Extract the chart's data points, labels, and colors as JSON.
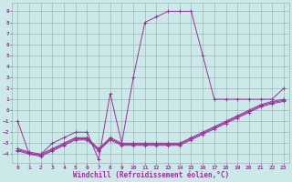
{
  "xlabel": "Windchill (Refroidissement éolien,°C)",
  "bg_color": "#cce8e8",
  "line_color": "#993399",
  "grid_color": "#99bbbb",
  "x_ticks": [
    0,
    1,
    2,
    3,
    4,
    5,
    6,
    7,
    8,
    9,
    10,
    11,
    12,
    13,
    14,
    15,
    16,
    17,
    18,
    19,
    20,
    21,
    22,
    23
  ],
  "y_ticks": [
    -4,
    -3,
    -2,
    -1,
    0,
    1,
    2,
    3,
    4,
    5,
    6,
    7,
    8,
    9
  ],
  "ylim": [
    -4.8,
    9.8
  ],
  "xlim": [
    -0.5,
    23.5
  ],
  "main_y": [
    -1,
    -4,
    -4,
    -3,
    -2.5,
    -2,
    -2,
    -4.5,
    1.5,
    -3,
    3,
    8,
    8.5,
    9,
    9,
    9,
    5,
    1,
    1,
    1,
    1,
    1,
    1,
    2
  ],
  "line1_y": [
    -3.5,
    -3.8,
    -4,
    -3.5,
    -3,
    -2.5,
    -2.5,
    -3.5,
    -2.5,
    -3,
    -3,
    -3,
    -3,
    -3,
    -3,
    -2.5,
    -2,
    -1.5,
    -1,
    -0.5,
    0,
    0.5,
    0.8,
    1.0
  ],
  "line2_y": [
    -3.6,
    -3.9,
    -4.1,
    -3.6,
    -3.1,
    -2.6,
    -2.6,
    -3.6,
    -2.6,
    -3.1,
    -3.1,
    -3.1,
    -3.1,
    -3.1,
    -3.1,
    -2.6,
    -2.1,
    -1.6,
    -1.1,
    -0.6,
    -0.1,
    0.4,
    0.7,
    0.9
  ],
  "line3_y": [
    -3.7,
    -4.0,
    -4.2,
    -3.7,
    -3.2,
    -2.7,
    -2.7,
    -3.7,
    -2.7,
    -3.2,
    -3.2,
    -3.2,
    -3.2,
    -3.2,
    -3.2,
    -2.7,
    -2.2,
    -1.7,
    -1.2,
    -0.7,
    -0.2,
    0.3,
    0.6,
    0.8
  ]
}
